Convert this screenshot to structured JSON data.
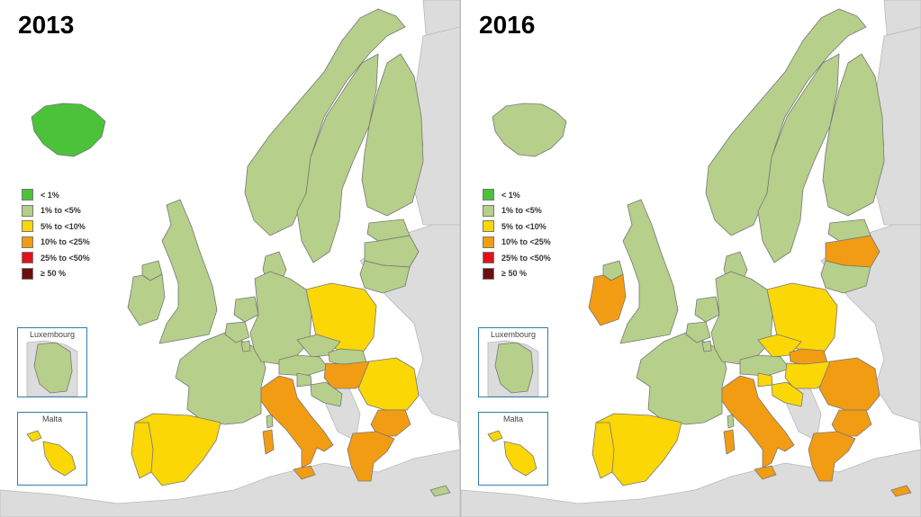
{
  "maps": [
    {
      "year": "2013",
      "colors": {
        "iceland": "#4cc23a",
        "uk": "#b6cf8a",
        "ireland": "#b6cf8a",
        "northern_ireland": "#b6cf8a",
        "norway": "#b6cf8a",
        "sweden": "#b6cf8a",
        "finland": "#b6cf8a",
        "denmark": "#b6cf8a",
        "estonia": "#b6cf8a",
        "latvia": "#b6cf8a",
        "lithuania": "#b6cf8a",
        "france": "#b6cf8a",
        "belgium": "#b6cf8a",
        "netherlands": "#b6cf8a",
        "germany": "#b6cf8a",
        "luxembourg": "#b6cf8a",
        "austria": "#b6cf8a",
        "czechia": "#b6cf8a",
        "slovenia": "#b6cf8a",
        "croatia": "#b6cf8a",
        "slovakia": "#b6cf8a",
        "poland": "#fbd706",
        "spain": "#fbd706",
        "portugal": "#fbd706",
        "romania": "#fbd706",
        "malta": "#fbd706",
        "cyprus": "#b6cf8a",
        "hungary": "#f29c14",
        "italy": "#f29c14",
        "bulgaria": "#f29c14",
        "greece": "#f29c14"
      }
    },
    {
      "year": "2016",
      "colors": {
        "iceland": "#b6cf8a",
        "uk": "#b6cf8a",
        "ireland": "#f29c14",
        "northern_ireland": "#b6cf8a",
        "norway": "#b6cf8a",
        "sweden": "#b6cf8a",
        "finland": "#b6cf8a",
        "denmark": "#b6cf8a",
        "estonia": "#b6cf8a",
        "latvia": "#f29c14",
        "lithuania": "#b6cf8a",
        "france": "#b6cf8a",
        "belgium": "#b6cf8a",
        "netherlands": "#b6cf8a",
        "germany": "#b6cf8a",
        "luxembourg": "#b6cf8a",
        "austria": "#b6cf8a",
        "czechia": "#fbd706",
        "slovenia": "#fbd706",
        "croatia": "#fbd706",
        "slovakia": "#f29c14",
        "poland": "#fbd706",
        "spain": "#fbd706",
        "portugal": "#fbd706",
        "romania": "#f29c14",
        "malta": "#fbd706",
        "cyprus": "#f29c14",
        "hungary": "#fbd706",
        "italy": "#f29c14",
        "bulgaria": "#f29c14",
        "greece": "#f29c14"
      }
    }
  ],
  "legend": [
    {
      "label": "< 1%",
      "color": "#4cc23a"
    },
    {
      "label": "1% to <5%",
      "color": "#b6cf8a"
    },
    {
      "label": "5% to <10%",
      "color": "#fbd706"
    },
    {
      "label": "10% to <25%",
      "color": "#f29c14"
    },
    {
      "label": "25% to <50%",
      "color": "#e3101a"
    },
    {
      "label": "≥ 50 %",
      "color": "#6b0f0f"
    }
  ],
  "insets": {
    "luxembourg_label": "Luxembourg",
    "malta_label": "Malta"
  },
  "palette": {
    "non_eu": "#dcdcdc",
    "border": "#777777",
    "sea": "#ffffff"
  }
}
